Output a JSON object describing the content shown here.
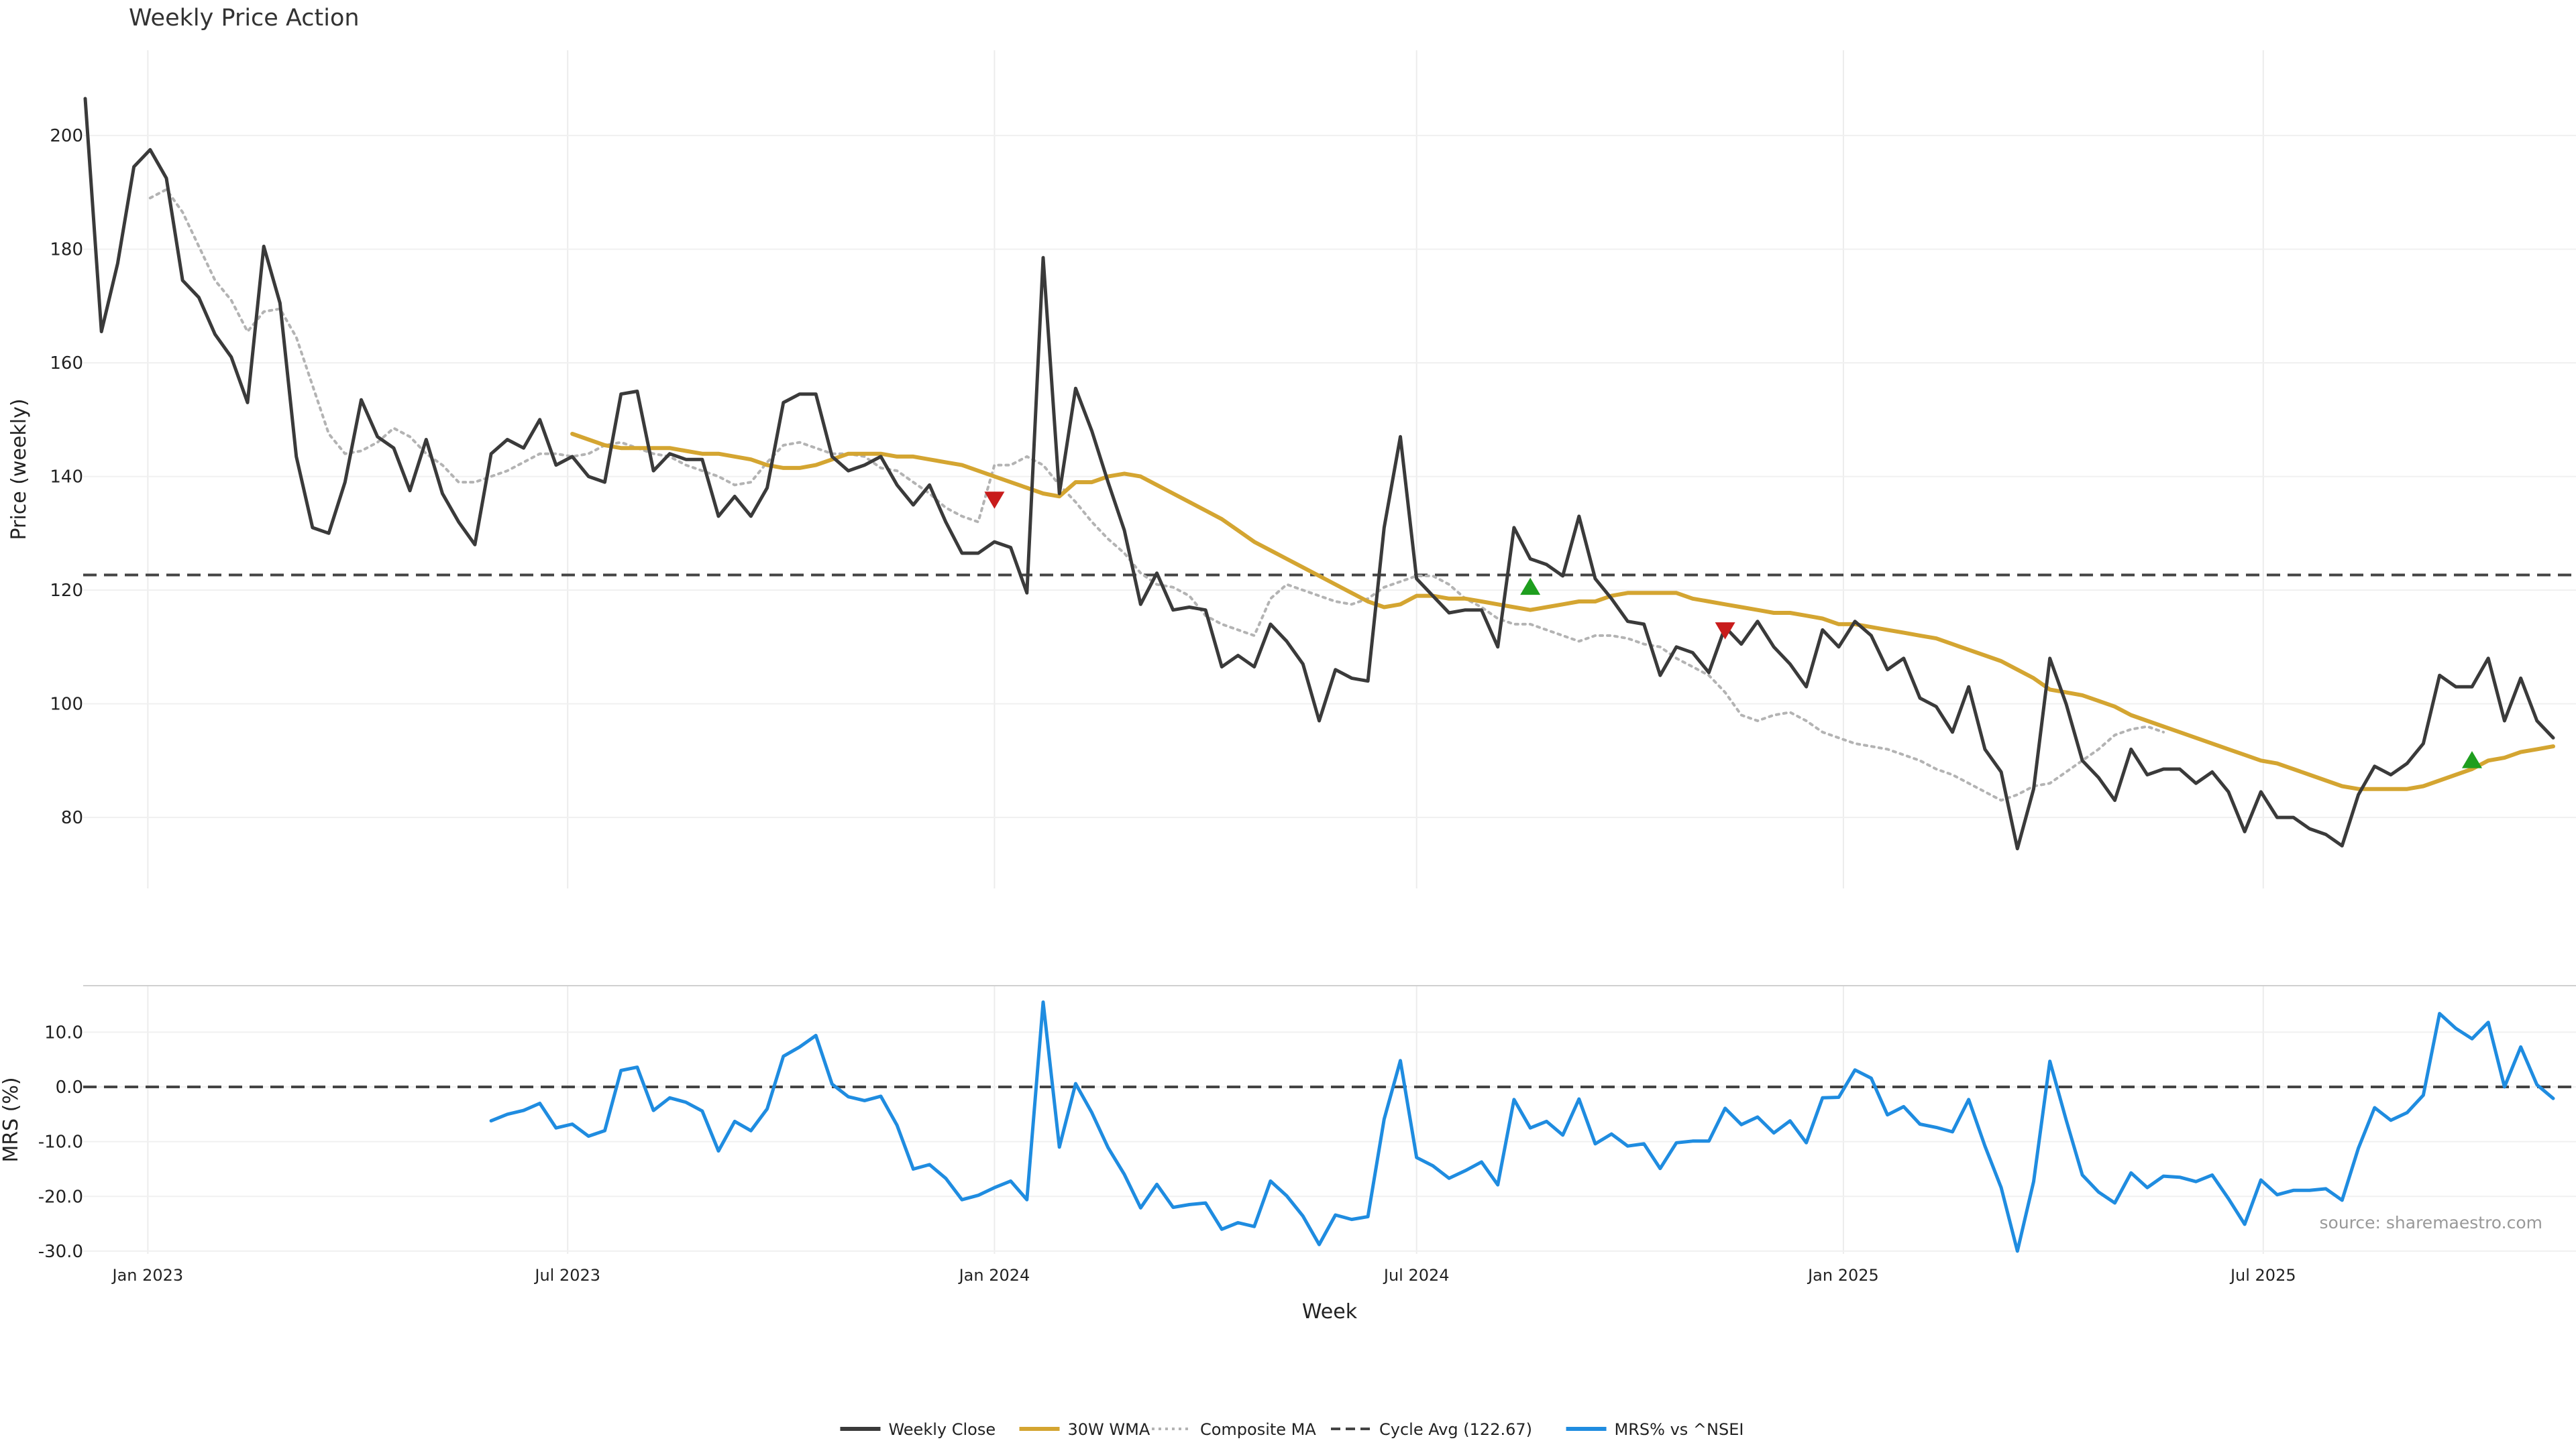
{
  "chart_data": [
    {
      "type": "line",
      "title": "Weekly Price Action",
      "xlabel": "",
      "ylabel": "Price (weekly)",
      "ylim": [
        67.5,
        215
      ],
      "y_ticks": [
        80,
        100,
        120,
        140,
        160,
        180,
        200
      ],
      "grid": true,
      "x_start": "2022-12-05",
      "x_step_days": 7,
      "x_tick_labels": [
        {
          "date": "2023-01-01",
          "label": "Jan 2023"
        },
        {
          "date": "2023-07-01",
          "label": "Jul 2023"
        },
        {
          "date": "2024-01-01",
          "label": "Jan 2024"
        },
        {
          "date": "2024-07-01",
          "label": "Jul 2024"
        },
        {
          "date": "2025-01-01",
          "label": "Jan 2025"
        },
        {
          "date": "2025-07-01",
          "label": "Jul 2025"
        }
      ],
      "series": [
        {
          "name": "Weekly Close",
          "color": "#3a3a3a",
          "values": [
            206.5,
            165.5,
            177.5,
            194.5,
            197.5,
            192.5,
            174.5,
            171.5,
            165,
            161,
            153,
            180.5,
            170.5,
            143.5,
            131,
            130,
            139,
            153.5,
            147,
            145,
            137.5,
            146.5,
            137,
            132,
            128,
            144,
            146.5,
            145,
            150,
            142,
            143.5,
            140,
            139,
            154.5,
            155,
            141,
            144,
            143,
            143,
            133,
            136.5,
            133,
            138,
            153,
            154.5,
            154.5,
            143.5,
            141,
            142,
            143.5,
            138.5,
            135,
            138.5,
            132,
            126.5,
            126.5,
            128.5,
            127.5,
            119.5,
            178.5,
            137,
            155.5,
            148,
            139,
            130.5,
            117.5,
            123,
            116.5,
            117,
            116.5,
            106.5,
            108.5,
            106.5,
            114,
            111,
            107,
            97,
            106,
            104.5,
            104,
            131,
            147,
            122,
            119,
            116,
            116.5,
            116.5,
            110,
            131,
            125.5,
            124.5,
            122.5,
            133,
            122,
            118.5,
            114.5,
            114,
            105,
            110,
            109,
            105.5,
            113.5,
            110.5,
            114.5,
            110,
            107,
            103,
            113,
            110,
            114.5,
            112,
            106,
            108,
            101,
            99.5,
            95,
            103,
            92,
            88,
            74.5,
            85,
            108,
            100,
            90,
            87,
            83,
            92,
            87.5,
            88.5,
            88.5,
            86,
            88,
            84.5,
            77.5,
            84.5,
            80,
            80,
            78,
            77,
            75,
            84,
            89,
            87.5,
            89.5,
            93,
            105,
            103,
            103,
            108,
            97,
            104.5,
            97,
            94
          ]
        },
        {
          "name": "30W WMA",
          "color": "#d4a531",
          "start_index": 30,
          "values": [
            147.5,
            146.5,
            145.5,
            145,
            145,
            145,
            145,
            144.5,
            144,
            144,
            143.5,
            143,
            142,
            141.5,
            141.5,
            142,
            143,
            144,
            144,
            144,
            143.5,
            143.5,
            143,
            142.5,
            142,
            141,
            140,
            139,
            138,
            137,
            136.5,
            139,
            139,
            140,
            140.5,
            140,
            138.5,
            137,
            135.5,
            134,
            132.5,
            130.5,
            128.5,
            127,
            125.5,
            124,
            122.5,
            121,
            119.5,
            118,
            117,
            117.5,
            119,
            119,
            118.5,
            118.5,
            118,
            117.5,
            117,
            116.5,
            117,
            117.5,
            118,
            118,
            119,
            119.5,
            119.5,
            119.5,
            119.5,
            118.5,
            118,
            117.5,
            117,
            116.5,
            116,
            116,
            115.5,
            115,
            114,
            114,
            113.5,
            113,
            112.5,
            112,
            111.5,
            110.5,
            109.5,
            108.5,
            107.5,
            106,
            104.5,
            102.5,
            102,
            101.5,
            100.5,
            99.5,
            98,
            97,
            96,
            95,
            94,
            93,
            92,
            91,
            90,
            89.5,
            88.5,
            87.5,
            86.5,
            85.5,
            85,
            85,
            85,
            85,
            85.5,
            86.5,
            87.5,
            88.5,
            90,
            90.5,
            91.5,
            92,
            92.5
          ]
        },
        {
          "name": "Composite MA",
          "color": "#b3b3b3",
          "start_index": 4,
          "values": [
            189,
            190.5,
            186.5,
            180.5,
            174.5,
            171,
            165.5,
            169,
            169.5,
            164.5,
            156,
            147.5,
            144,
            144.5,
            146,
            148.5,
            147,
            144,
            142,
            139,
            139,
            140,
            141,
            142.5,
            144,
            144,
            143.5,
            144,
            145.5,
            146,
            145,
            144,
            143.5,
            142,
            141,
            140,
            138.5,
            139,
            142.5,
            145.5,
            146,
            145,
            144,
            144,
            143.5,
            141.5,
            141,
            139,
            137,
            134.5,
            133,
            132,
            142,
            142,
            143.5,
            142,
            138.5,
            135.5,
            132,
            129,
            126.5,
            123,
            121,
            120.5,
            119,
            115.5,
            114,
            113,
            112,
            118.5,
            121,
            120,
            119,
            118,
            117.5,
            118.5,
            120.5,
            121.5,
            122.5,
            122.5,
            121,
            118.5,
            117,
            115,
            114,
            114,
            113,
            112,
            111,
            112,
            112,
            111.5,
            110.5,
            110,
            108,
            106.5,
            105,
            102,
            98,
            97,
            98,
            98.5,
            97,
            95,
            94,
            93,
            92.5,
            92,
            91,
            90,
            88.5,
            87.5,
            86,
            84.5,
            83,
            84,
            85.5,
            86,
            88,
            90,
            92,
            94.5,
            95.5,
            96,
            95
          ]
        }
      ],
      "hlines": [
        {
          "name": "Cycle Avg (122.67)",
          "value": 122.67,
          "color": "#444444"
        }
      ],
      "markers": [
        {
          "index": 56,
          "value": 136,
          "direction": "down",
          "color": "#c81c1c"
        },
        {
          "index": 89,
          "value": 120.5,
          "direction": "up",
          "color": "#1e9e1e"
        },
        {
          "index": 101,
          "value": 113,
          "direction": "down",
          "color": "#c81c1c"
        },
        {
          "index": 147,
          "value": 90,
          "direction": "up",
          "color": "#1e9e1e"
        }
      ]
    },
    {
      "type": "line",
      "title": "",
      "xlabel": "Week",
      "ylabel": "MRS (%)",
      "ylim": [
        -30.5,
        18.5
      ],
      "y_ticks": [
        10.0,
        0.0,
        -10.0,
        -20.0,
        -30.0
      ],
      "y_tick_labels": [
        "10.0",
        "0.0",
        "-10.0",
        "-20.0",
        "-30.0"
      ],
      "grid": true,
      "series": [
        {
          "name": "MRS% vs ^NSEI",
          "color": "#1f8ce0",
          "start_index": 25,
          "values": [
            -6.2,
            -5,
            -4.3,
            -3,
            -7.5,
            -6.8,
            -9,
            -8,
            3,
            3.6,
            -4.3,
            -2,
            -2.8,
            -4.4,
            -11.7,
            -6.3,
            -8,
            -4,
            5.6,
            7.3,
            9.4,
            0.5,
            -1.8,
            -2.5,
            -1.7,
            -7,
            -15,
            -14.2,
            -16.7,
            -20.6,
            -19.8,
            -18.4,
            -17.2,
            -20.6,
            15.5,
            -11,
            0.6,
            -4.7,
            -11.1,
            -16,
            -22.1,
            -17.8,
            -22,
            -21.5,
            -21.2,
            -26,
            -24.8,
            -25.5,
            -17.2,
            -19.9,
            -23.6,
            -28.8,
            -23.4,
            -24.2,
            -23.7,
            -5.9,
            4.8,
            -12.9,
            -14.4,
            -16.7,
            -15.3,
            -13.7,
            -17.9,
            -2.3,
            -7.5,
            -6.3,
            -8.8,
            -2.2,
            -10.4,
            -8.6,
            -10.8,
            -10.4,
            -14.9,
            -10.2,
            -9.9,
            -9.9,
            -3.9,
            -6.9,
            -5.5,
            -8.4,
            -6.2,
            -10.2,
            -2,
            -1.9,
            3.1,
            1.6,
            -5.1,
            -3.6,
            -6.8,
            -7.4,
            -8.2,
            -2.3,
            -10.8,
            -18.4,
            -30,
            -17.3,
            4.7,
            -6,
            -16.1,
            -19.2,
            -21.2,
            -15.7,
            -18.4,
            -16.3,
            -16.5,
            -17.3,
            -16.1,
            -20.4,
            -25.1,
            -17,
            -19.7,
            -18.9,
            -18.9,
            -18.6,
            -20.7,
            -11.2,
            -3.8,
            -6.1,
            -4.7,
            -1.5,
            13.4,
            10.7,
            8.8,
            11.8,
            0,
            7.3,
            0.4,
            -2.1
          ]
        }
      ],
      "hlines": [
        {
          "value": 0,
          "color": "#444444"
        }
      ],
      "annotation": "source: sharemaestro.com"
    }
  ],
  "legend": {
    "placement": "bottom-center",
    "entries": [
      {
        "label": "Weekly Close",
        "color": "#3a3a3a",
        "style": "solid"
      },
      {
        "label": "30W WMA",
        "color": "#d4a531",
        "style": "solid"
      },
      {
        "label": "Composite MA",
        "color": "#b3b3b3",
        "style": "dotted"
      },
      {
        "label": "Cycle Avg (122.67)",
        "color": "#444444",
        "style": "dashed"
      },
      {
        "label": "MRS% vs ^NSEI",
        "color": "#1f8ce0",
        "style": "solid"
      }
    ]
  }
}
